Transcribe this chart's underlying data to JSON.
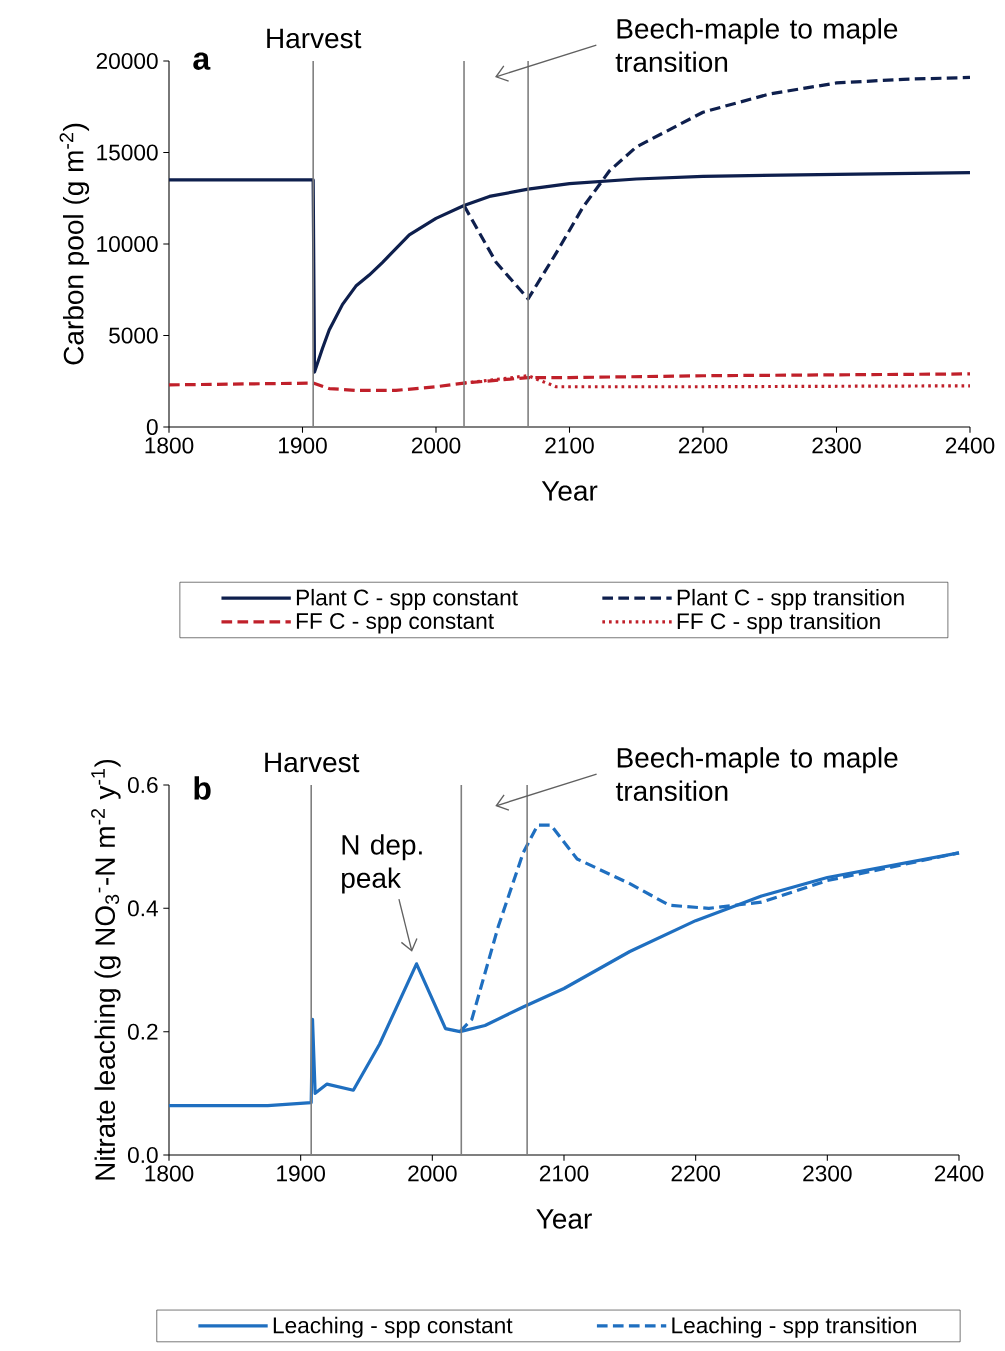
{
  "chart_data": [
    {
      "type": "line",
      "title": "a",
      "xlabel": "Year",
      "ylabel": "Carbon pool (g m$^{-2}$)",
      "xlim": [
        1800,
        2400
      ],
      "ylim": [
        0,
        20000
      ],
      "xticks": [
        1800,
        1900,
        2000,
        2100,
        2200,
        2300,
        2400
      ],
      "yticks": [
        0,
        5000,
        10000,
        15000,
        20000
      ],
      "legend": "bottom",
      "ref_lines": [
        {
          "axis": "x",
          "value": 1908,
          "label": "Harvest",
          "color": "#7f7f7f"
        },
        {
          "axis": "x",
          "value": 2021,
          "color": "#7f7f7f"
        },
        {
          "axis": "x",
          "value": 2069,
          "color": "#7f7f7f"
        }
      ],
      "annotations": [
        "Beech-maple to maple transition"
      ],
      "series": [
        {
          "name": "Plant C - spp constant",
          "color": "#0e1f4d",
          "line_style": "solid",
          "x": [
            1800,
            1850,
            1908,
            1909,
            1915,
            1920,
            1930,
            1940,
            1950,
            1960,
            1980,
            2000,
            2021,
            2040,
            2069,
            2100,
            2150,
            2200,
            2300,
            2400
          ],
          "values": [
            13500,
            13500,
            13500,
            3000,
            4300,
            5300,
            6700,
            7700,
            8300,
            9000,
            10500,
            11400,
            12100,
            12600,
            13000,
            13300,
            13550,
            13700,
            13800,
            13900
          ]
        },
        {
          "name": "Plant C - spp transition",
          "color": "#0e1f4d",
          "line_style": "dashed",
          "x": [
            2021,
            2045,
            2069,
            2090,
            2110,
            2130,
            2150,
            2200,
            2250,
            2300,
            2350,
            2400
          ],
          "values": [
            12100,
            9000,
            7000,
            9500,
            12000,
            14000,
            15300,
            17200,
            18200,
            18800,
            19000,
            19100
          ]
        },
        {
          "name": "FF C - spp constant",
          "color": "#c0202a",
          "line_style": "dashed",
          "x": [
            1800,
            1908,
            1920,
            1940,
            1970,
            2000,
            2021,
            2069,
            2100,
            2200,
            2300,
            2400
          ],
          "values": [
            2300,
            2400,
            2100,
            2000,
            2000,
            2200,
            2400,
            2700,
            2700,
            2800,
            2850,
            2900
          ]
        },
        {
          "name": "FF C - spp transition",
          "color": "#c0202a",
          "line_style": "dotted",
          "x": [
            2021,
            2045,
            2069,
            2090,
            2200,
            2400
          ],
          "values": [
            2400,
            2600,
            2800,
            2200,
            2200,
            2250
          ]
        }
      ]
    },
    {
      "type": "line",
      "title": "b",
      "xlabel": "Year",
      "ylabel": "Nitrate leaching (g NO$_{3}$$^{-}$-N m$^{-2}$ y$^{-1}$)",
      "xlim": [
        1800,
        2400
      ],
      "ylim": [
        0,
        0.6
      ],
      "xticks": [
        1800,
        1900,
        2000,
        2100,
        2200,
        2300,
        2400
      ],
      "yticks": [
        {
          "value": 0,
          "label": "0.0"
        },
        0.2,
        0.4,
        0.6
      ],
      "legend": "bottom",
      "ref_lines": [
        {
          "axis": "x",
          "value": 1908,
          "label": "Harvest",
          "color": "#7f7f7f"
        },
        {
          "axis": "x",
          "value": 2022,
          "color": "#7f7f7f"
        },
        {
          "axis": "x",
          "value": 2072,
          "color": "#7f7f7f"
        }
      ],
      "annotations": [
        "Beech-maple to maple transition",
        "N dep. peak"
      ],
      "series": [
        {
          "name": "Leaching - spp constant",
          "color": "#1f6fc0",
          "line_style": "solid",
          "x": [
            1800,
            1875,
            1908,
            1909,
            1911,
            1920,
            1940,
            1960,
            1988,
            2010,
            2021,
            2040,
            2069,
            2100,
            2150,
            2200,
            2250,
            2300,
            2350,
            2400
          ],
          "values": [
            0.08,
            0.08,
            0.085,
            0.22,
            0.1,
            0.115,
            0.105,
            0.18,
            0.31,
            0.205,
            0.2,
            0.21,
            0.24,
            0.27,
            0.33,
            0.38,
            0.42,
            0.45,
            0.47,
            0.49
          ]
        },
        {
          "name": "Leaching - spp transition",
          "color": "#1f6fc0",
          "line_style": "dashed",
          "x": [
            2021,
            2030,
            2050,
            2069,
            2080,
            2090,
            2110,
            2150,
            2180,
            2210,
            2250,
            2300,
            2400
          ],
          "values": [
            0.2,
            0.22,
            0.37,
            0.49,
            0.535,
            0.535,
            0.48,
            0.44,
            0.405,
            0.4,
            0.41,
            0.445,
            0.49
          ]
        }
      ]
    }
  ]
}
